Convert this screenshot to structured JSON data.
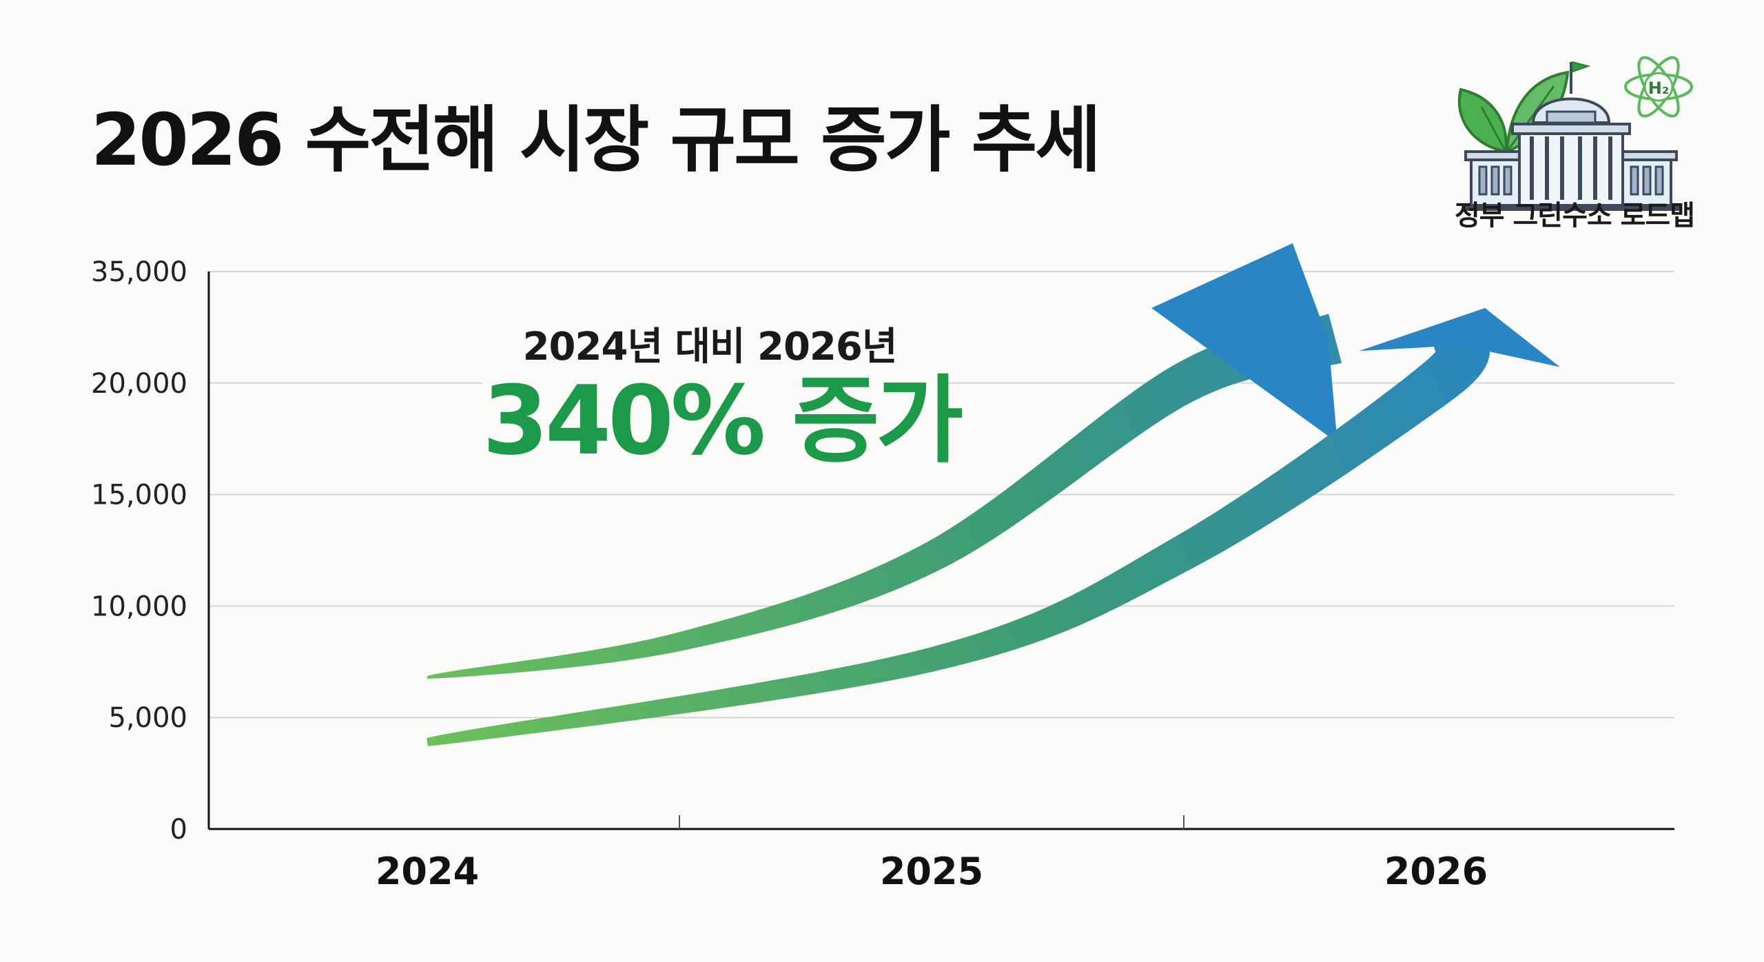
{
  "title": "2026 수전해 시장 규모 증가 추세",
  "colors": {
    "arrow_start": "#6cc05a",
    "arrow_end": "#2a85c4",
    "highlight": "#1c9a4a",
    "grid": "#d6d6d6",
    "axis": "#111111"
  },
  "callout": {
    "subtitle": "2024년 대비 2026년",
    "headline": "340% 증가"
  },
  "logo": {
    "caption": "정부 그린수소 로드맵",
    "icons": [
      "leaf-icon",
      "government-building-icon",
      "hydrogen-atom-icon"
    ],
    "h2_label": "H₂"
  },
  "chart_data": {
    "type": "line",
    "x": [
      "2024",
      "2025",
      "2026"
    ],
    "y_ticks": [
      "0",
      "5,000",
      "10,000",
      "15,000",
      "20,000",
      "35,000"
    ],
    "y_tick_values": [
      0,
      5000,
      10000,
      15000,
      20000,
      35000
    ],
    "grid": true,
    "series": [
      {
        "points": [
          [
            2024,
            6800
          ],
          [
            2024.5,
            8400
          ],
          [
            2025,
            12200
          ],
          [
            2025.5,
            20000
          ],
          [
            2025.8,
            26000
          ]
        ]
      },
      {
        "points": [
          [
            2024,
            3900
          ],
          [
            2025,
            7600
          ],
          [
            2025.5,
            12400
          ],
          [
            2026,
            20000
          ],
          [
            2026.05,
            26000
          ]
        ]
      }
    ]
  }
}
